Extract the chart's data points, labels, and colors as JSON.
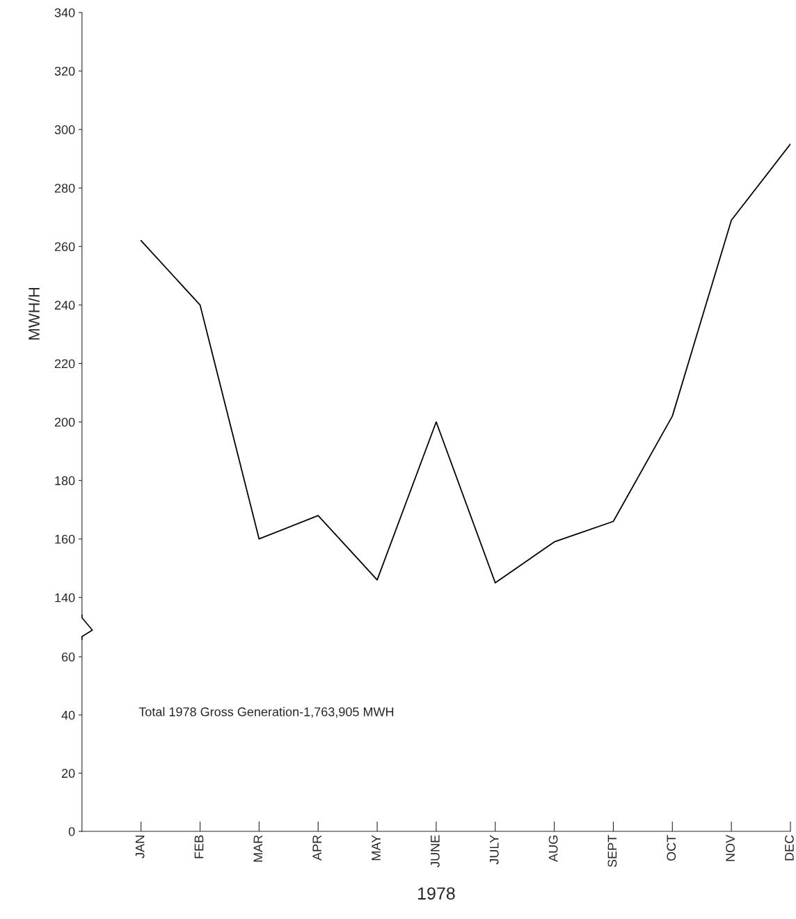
{
  "chart_data": [
    {
      "type": "line",
      "ylabel": "MWH/H",
      "series": [
        {
          "color": "#000000",
          "values": [
            262,
            240,
            160,
            168,
            146,
            200,
            145,
            159,
            166,
            202,
            269,
            295
          ]
        }
      ],
      "ylim": [
        134,
        340
      ],
      "yticks": [
        140,
        160,
        180,
        200,
        220,
        240,
        260,
        280,
        300,
        320,
        340
      ],
      "tick_labels": "y",
      "grid": false,
      "legend": false,
      "marker": "none",
      "line_style": "solid"
    },
    {
      "type": "line",
      "xlabel": "1978",
      "categories": [
        "JAN",
        "FEB",
        "MAR",
        "APR",
        "MAY",
        "JUNE",
        "JULY",
        "AUG",
        "SEPT",
        "OCT",
        "NOV",
        "DEC"
      ],
      "ylim": [
        0,
        66
      ],
      "yticks": [
        0,
        20,
        40,
        60
      ],
      "annotations": [
        "Total 1978 Gross Generation-1,763,905 MWH"
      ],
      "grid": false,
      "legend": false
    }
  ]
}
